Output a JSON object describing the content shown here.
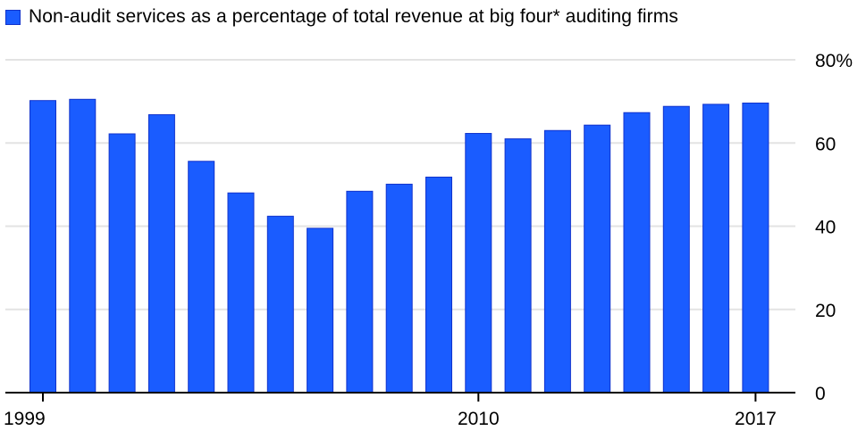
{
  "chart_data": {
    "type": "bar",
    "legend": [
      {
        "label": "Non-audit services as a percentage of total revenue at big four* auditing firms",
        "color": "#1a5cff"
      }
    ],
    "x": [
      1999,
      2000,
      2001,
      2002,
      2003,
      2004,
      2005,
      2006,
      2007,
      2008,
      2009,
      2010,
      2011,
      2012,
      2013,
      2014,
      2015,
      2016,
      2017
    ],
    "x_tick_labels": [
      "1999",
      "2010",
      "2017"
    ],
    "x_tick_positions": [
      1999,
      2010,
      2017
    ],
    "values": [
      70.2,
      70.5,
      62.2,
      66.8,
      55.6,
      48.0,
      42.4,
      39.5,
      48.4,
      50.1,
      51.8,
      62.3,
      61.0,
      63.0,
      64.3,
      67.3,
      68.8,
      69.3,
      69.6
    ],
    "ylim": [
      0,
      80
    ],
    "y_ticks": [
      0,
      20,
      40,
      60,
      80
    ],
    "y_tick_labels": [
      "0",
      "20",
      "40",
      "60",
      "80%"
    ],
    "y_axis_side": "right",
    "grid": true,
    "bar_color": "#1a5cff",
    "bar_edge_color": "#1133cc"
  }
}
